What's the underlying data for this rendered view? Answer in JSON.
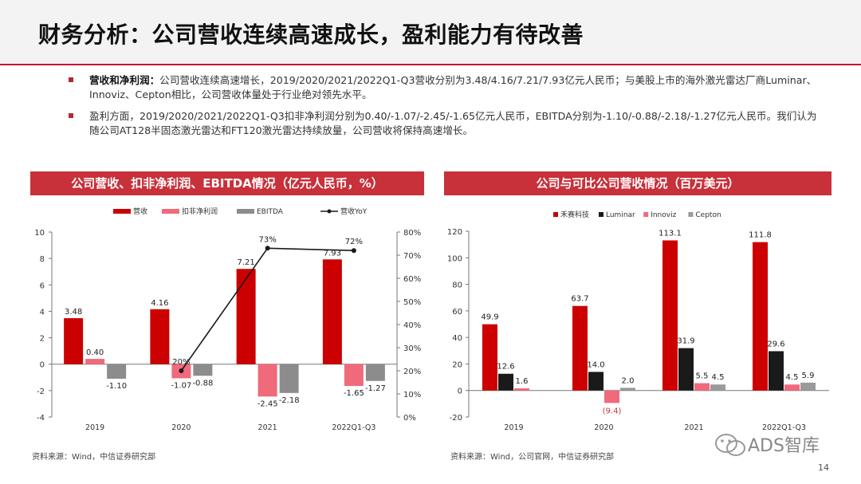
{
  "page": {
    "title": "财务分析：公司营收连续高速成长，盈利能力有待改善",
    "page_number": "14",
    "watermark": "ADS智库",
    "colors": {
      "accent": "#c8313a",
      "red": "#cc0000",
      "pink": "#f06a7c",
      "gray": "#8c8c8c",
      "black": "#1a1a1a",
      "lightgray": "#9a9a9a"
    }
  },
  "bullets": [
    {
      "bold": "营收和净利润：",
      "text": "公司营收连续高速增长，2019/2020/2021/2022Q1-Q3营收分别为3.48/4.16/7.21/7.93亿元人民币；与美股上市的海外激光雷达厂商Luminar、Innoviz、Cepton相比，公司营收体量处于行业绝对领先水平。"
    },
    {
      "bold": "",
      "text": "盈利方面，2019/2020/2021/2022Q1-Q3扣非净利润分别为0.40/-1.07/-2.45/-1.65亿元人民币，EBITDA分别为-1.10/-0.88/-2.18/-1.27亿元人民币。我们认为随公司AT128半固态激光雷达和FT120激光雷达持续放量，公司营收将保持高速增长。"
    }
  ],
  "left_panel": {
    "header": "公司营收、扣非净利润、EBITDA情况（亿元人民币，%）",
    "source": "资料来源：Wind，中信证券研究部"
  },
  "right_panel": {
    "header": "公司与可比公司营收情况（百万美元）",
    "source": "资料来源：Wind，公司官网，中信证券研究部"
  },
  "chart_data": [
    {
      "type": "bar",
      "categories": [
        "2019",
        "2020",
        "2021",
        "2022Q1-Q3"
      ],
      "series": [
        {
          "name": "营收",
          "values": [
            3.48,
            4.16,
            7.21,
            7.93
          ],
          "labels": [
            "3.48",
            "4.16",
            "7.21",
            "7.93"
          ]
        },
        {
          "name": "扣非净利润",
          "values": [
            0.4,
            -1.07,
            -2.45,
            -1.65
          ],
          "labels": [
            "0.40",
            "-1.07",
            "-2.45",
            "-1.65"
          ]
        },
        {
          "name": "EBITDA",
          "values": [
            -1.1,
            -0.88,
            -2.18,
            -1.27
          ],
          "labels": [
            "-1.10",
            "-0.88",
            "-2.18",
            "-1.27"
          ]
        }
      ],
      "line_series": {
        "name": "营收YoY",
        "categories": [
          "2020",
          "2021",
          "2022Q1-Q3"
        ],
        "values": [
          20,
          73,
          72
        ],
        "labels": [
          "20%",
          "73%",
          "72%"
        ]
      },
      "ylim": [
        -4,
        10
      ],
      "yticks": [
        "-4",
        "-2",
        "0",
        "2",
        "4",
        "6",
        "8",
        "10"
      ],
      "y2lim": [
        0,
        80
      ],
      "y2ticks": [
        "0%",
        "10%",
        "20%",
        "30%",
        "40%",
        "50%",
        "60%",
        "70%",
        "80%"
      ],
      "legend_position": "top"
    },
    {
      "type": "bar",
      "categories": [
        "2019",
        "2020",
        "2021",
        "2022Q1-Q3"
      ],
      "series": [
        {
          "name": "禾赛科技",
          "values": [
            49.9,
            63.7,
            113.1,
            111.8
          ],
          "labels": [
            "49.9",
            "63.7",
            "113.1",
            "111.8"
          ]
        },
        {
          "name": "Luminar",
          "values": [
            12.6,
            14.0,
            31.9,
            29.6
          ],
          "labels": [
            "12.6",
            "14.0",
            "31.9",
            "29.6"
          ]
        },
        {
          "name": "Innoviz",
          "values": [
            1.6,
            -9.4,
            5.5,
            4.5
          ],
          "labels": [
            "1.6",
            "(9.4)",
            "5.5",
            "4.5"
          ]
        },
        {
          "name": "Cepton",
          "values": [
            null,
            2.0,
            4.5,
            5.9
          ],
          "labels": [
            "",
            "2.0",
            "4.5",
            "5.9"
          ]
        }
      ],
      "ylim": [
        -20,
        120
      ],
      "yticks": [
        "-20",
        "0",
        "20",
        "40",
        "60",
        "80",
        "100",
        "120"
      ],
      "legend_position": "top"
    }
  ]
}
